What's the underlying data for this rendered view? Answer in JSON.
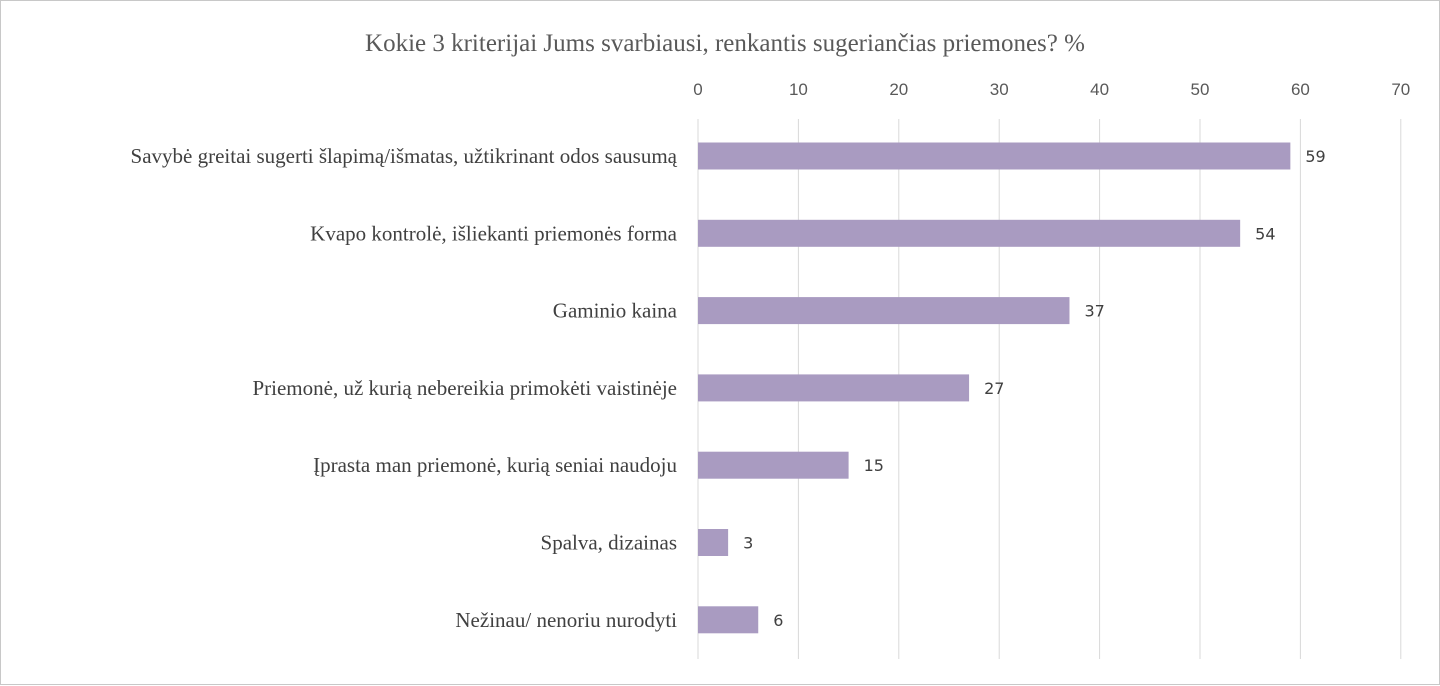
{
  "chart_data": {
    "type": "bar",
    "orientation": "horizontal",
    "title": "Kokie 3 kriterijai Jums svarbiausi, renkantis sugeriančias priemones? %",
    "categories": [
      "Savybė greitai sugerti šlapimą/išmatas, užtikrinant odos sausumą",
      "Kvapo kontrolė, išliekanti priemonės forma",
      "Gaminio kaina",
      "Priemonė, už kurią nebereikia primokėti vaistinėje",
      "Įprasta man priemonė, kurią seniai naudoju",
      "Spalva, dizainas",
      "Nežinau/ nenoriu nurodyti"
    ],
    "values": [
      59,
      54,
      37,
      27,
      15,
      3,
      6
    ],
    "data_labels": [
      "59",
      "54",
      "37",
      "27",
      "15",
      "3",
      "6"
    ],
    "xlim": [
      0,
      70
    ],
    "x_ticks": [
      "0",
      "10",
      "20",
      "30",
      "40",
      "50",
      "60",
      "70"
    ],
    "axis_position": "top",
    "grid": true,
    "legend": "none",
    "bar_color": "#a99bc1",
    "gridline_color": "#d9d9d9"
  }
}
